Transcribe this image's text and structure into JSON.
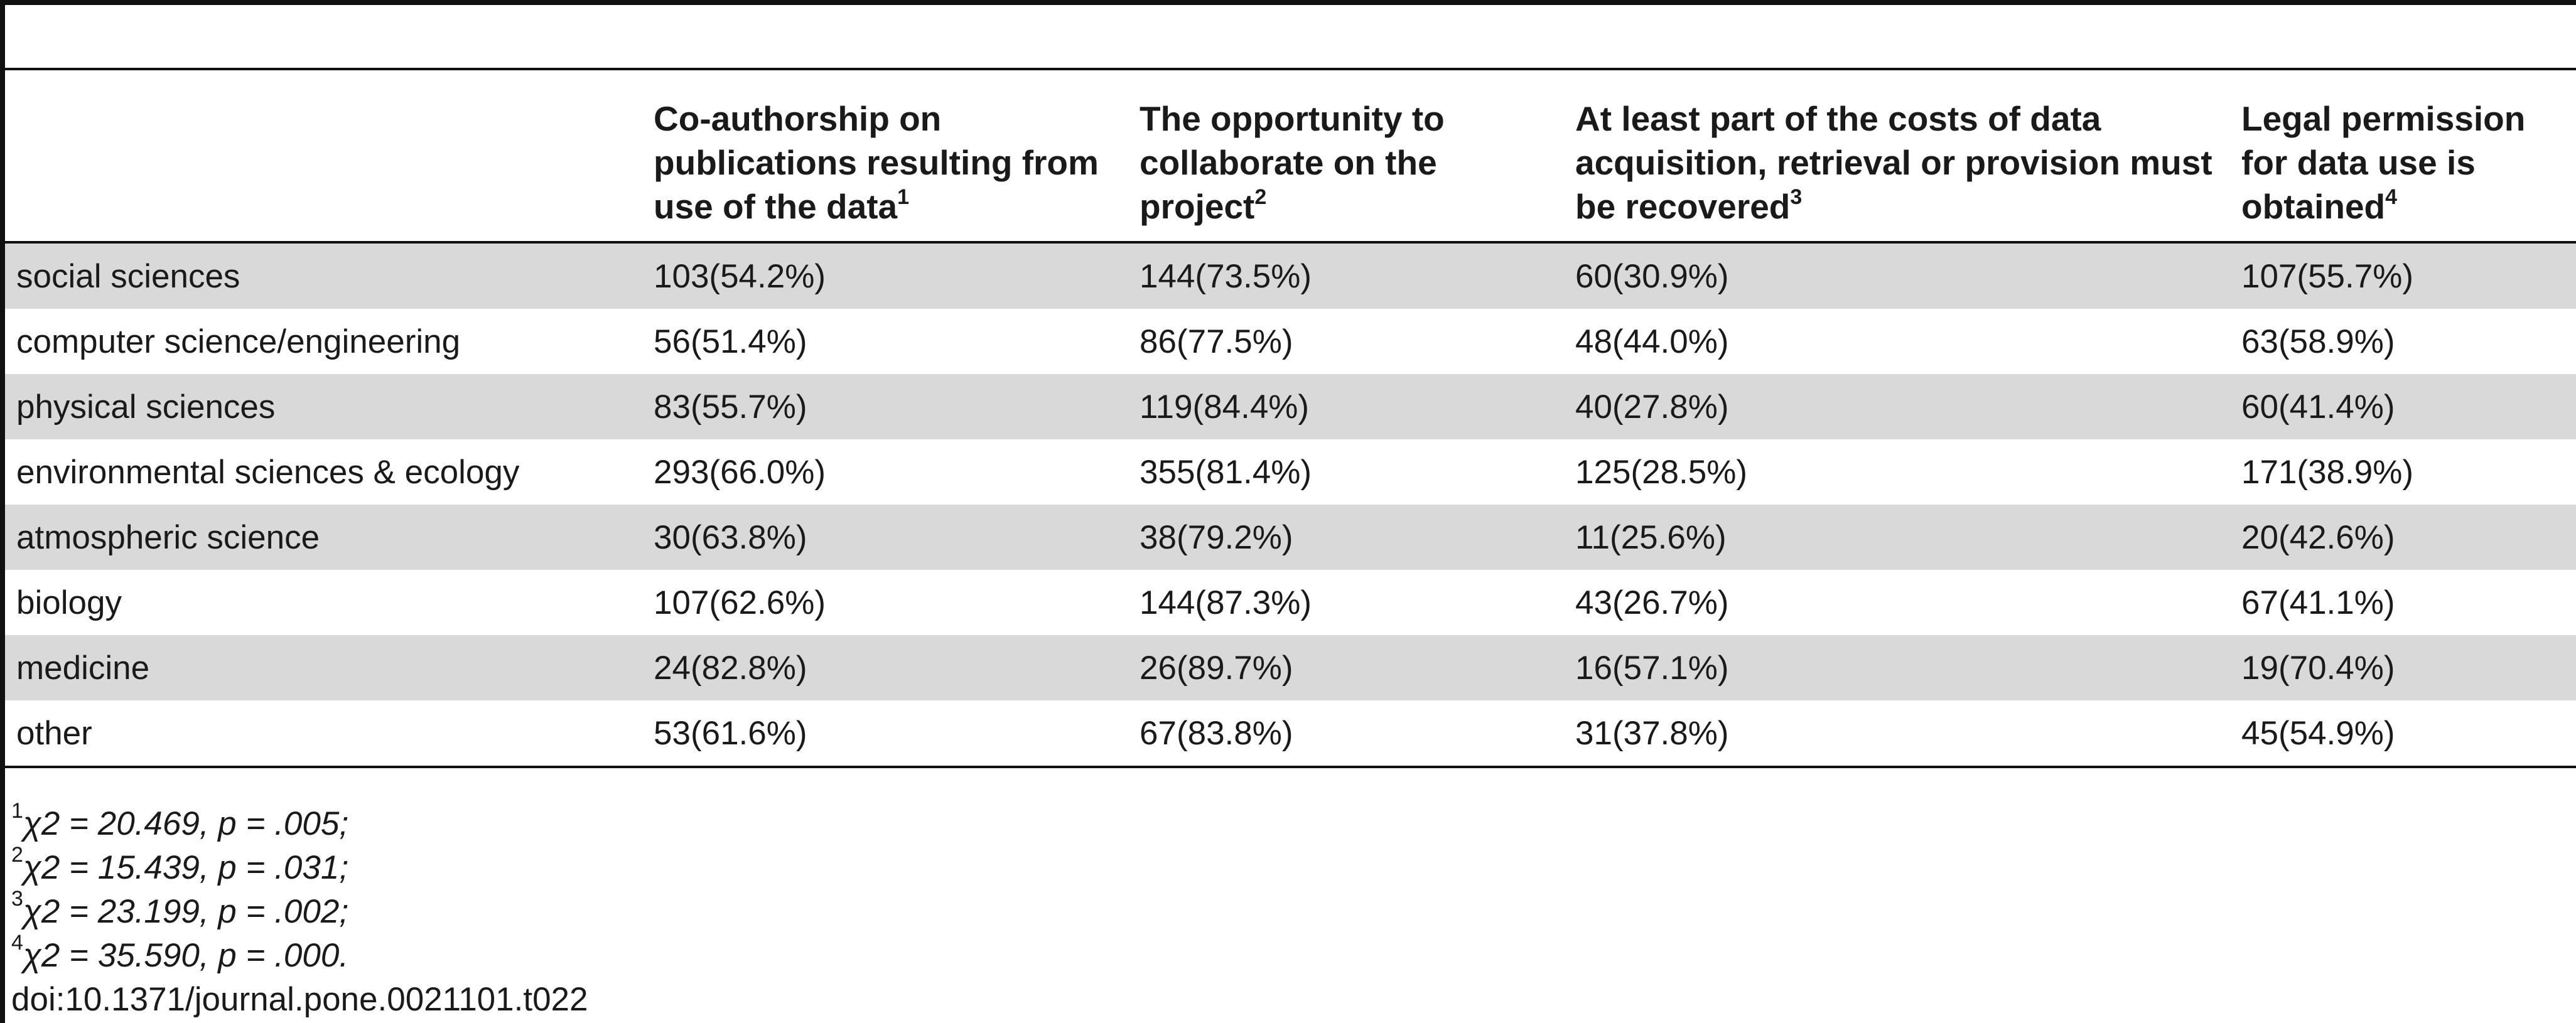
{
  "table": {
    "columns": [
      {
        "label": "",
        "marker": ""
      },
      {
        "label": "Co-authorship on publications resulting from use of the data",
        "marker": "1"
      },
      {
        "label": "The opportunity to collaborate on the project",
        "marker": "2"
      },
      {
        "label": "At least part of the costs of data acquisition, retrieval or provision must be recovered",
        "marker": "3"
      },
      {
        "label": "Legal permission for data use is obtained",
        "marker": "4"
      }
    ],
    "rows": [
      {
        "field": "social sciences",
        "c1": "103(54.2%)",
        "c2": "144(73.5%)",
        "c3": "60(30.9%)",
        "c4": "107(55.7%)"
      },
      {
        "field": "computer science/engineering",
        "c1": "56(51.4%)",
        "c2": "86(77.5%)",
        "c3": "48(44.0%)",
        "c4": "63(58.9%)"
      },
      {
        "field": "physical sciences",
        "c1": "83(55.7%)",
        "c2": "119(84.4%)",
        "c3": "40(27.8%)",
        "c4": "60(41.4%)"
      },
      {
        "field": "environmental sciences & ecology",
        "c1": "293(66.0%)",
        "c2": "355(81.4%)",
        "c3": "125(28.5%)",
        "c4": "171(38.9%)"
      },
      {
        "field": "atmospheric science",
        "c1": "30(63.8%)",
        "c2": "38(79.2%)",
        "c3": "11(25.6%)",
        "c4": "20(42.6%)"
      },
      {
        "field": "biology",
        "c1": "107(62.6%)",
        "c2": "144(87.3%)",
        "c3": "43(26.7%)",
        "c4": "67(41.1%)"
      },
      {
        "field": "medicine",
        "c1": "24(82.8%)",
        "c2": "26(89.7%)",
        "c3": "16(57.1%)",
        "c4": "19(70.4%)"
      },
      {
        "field": "other",
        "c1": "53(61.6%)",
        "c2": "67(83.8%)",
        "c3": "31(37.8%)",
        "c4": "45(54.9%)"
      }
    ]
  },
  "footnotes": [
    {
      "marker": "1",
      "text": "χ2 = 20.469, p = .005;"
    },
    {
      "marker": "2",
      "text": "χ2 = 15.439, p = .031;"
    },
    {
      "marker": "3",
      "text": "χ2 = 23.199, p = .002;"
    },
    {
      "marker": "4",
      "text": "χ2 = 35.590, p = .000."
    }
  ],
  "doi": "doi:10.1371/journal.pone.0021101.t022"
}
